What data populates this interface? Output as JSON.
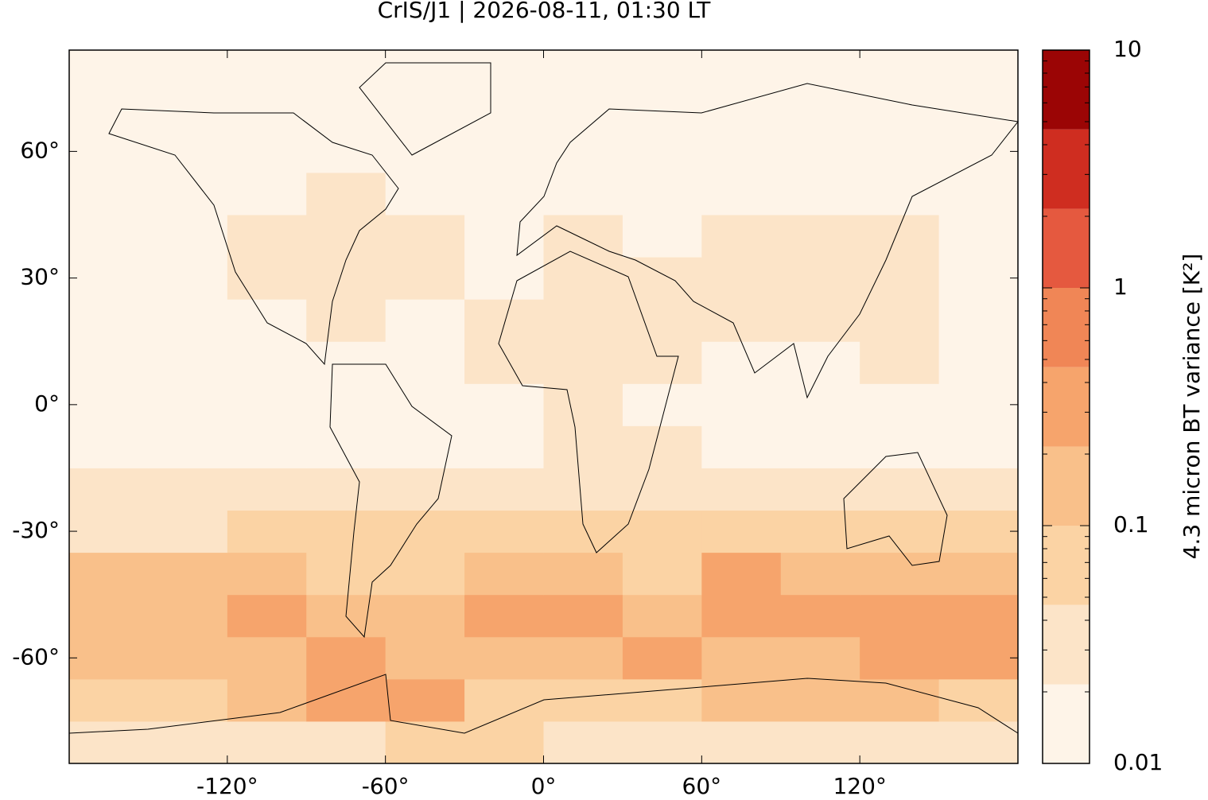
{
  "chart_data": {
    "type": "map",
    "title": "CrIS/J1 | 2026-08-11, 01:30 LT",
    "xlim": [
      -180,
      180
    ],
    "ylim": [
      -85,
      84
    ],
    "xticks": [
      {
        "value": -120,
        "label": "-120°"
      },
      {
        "value": -60,
        "label": "-60°"
      },
      {
        "value": 0,
        "label": "0°"
      },
      {
        "value": 60,
        "label": "60°"
      },
      {
        "value": 120,
        "label": "120°"
      }
    ],
    "yticks": [
      {
        "value": -60,
        "label": "-60°"
      },
      {
        "value": -30,
        "label": "-30°"
      },
      {
        "value": 0,
        "label": "0°"
      },
      {
        "value": 30,
        "label": "30°"
      },
      {
        "value": 60,
        "label": "60°"
      }
    ],
    "field": {
      "lon_edges": [
        -180,
        -150,
        -120,
        -90,
        -60,
        -30,
        0,
        30,
        60,
        90,
        120,
        150,
        180
      ],
      "lat_edges": [
        -85,
        -75,
        -65,
        -55,
        -45,
        -35,
        -25,
        -15,
        -5,
        5,
        15,
        25,
        35,
        45,
        55,
        65,
        75,
        84
      ],
      "values": [
        [
          0.03,
          0.03,
          0.03,
          0.04,
          0.06,
          0.05,
          0.04,
          0.03,
          0.03,
          0.03,
          0.03,
          0.03
        ],
        [
          0.06,
          0.07,
          0.1,
          0.35,
          0.3,
          0.08,
          0.07,
          0.07,
          0.1,
          0.15,
          0.1,
          0.08
        ],
        [
          0.1,
          0.12,
          0.2,
          0.3,
          0.2,
          0.15,
          0.18,
          0.25,
          0.15,
          0.12,
          0.3,
          0.25
        ],
        [
          0.15,
          0.18,
          0.25,
          0.2,
          0.12,
          0.25,
          0.3,
          0.15,
          0.35,
          0.3,
          0.4,
          0.3
        ],
        [
          0.12,
          0.1,
          0.1,
          0.08,
          0.08,
          0.12,
          0.15,
          0.08,
          0.25,
          0.15,
          0.15,
          0.2
        ],
        [
          0.04,
          0.04,
          0.05,
          0.05,
          0.05,
          0.05,
          0.05,
          0.06,
          0.06,
          0.05,
          0.06,
          0.05
        ],
        [
          0.025,
          0.025,
          0.025,
          0.025,
          0.025,
          0.025,
          0.025,
          0.025,
          0.025,
          0.025,
          0.025,
          0.025
        ],
        [
          0.02,
          0.02,
          0.02,
          0.02,
          0.02,
          0.02,
          0.025,
          0.025,
          0.02,
          0.02,
          0.02,
          0.02
        ],
        [
          0.02,
          0.02,
          0.02,
          0.02,
          0.02,
          0.02,
          0.025,
          0.02,
          0.02,
          0.02,
          0.02,
          0.02
        ],
        [
          0.02,
          0.02,
          0.02,
          0.02,
          0.02,
          0.025,
          0.03,
          0.025,
          0.02,
          0.02,
          0.025,
          0.02
        ],
        [
          0.02,
          0.02,
          0.02,
          0.025,
          0.02,
          0.025,
          0.03,
          0.025,
          0.03,
          0.025,
          0.025,
          0.02
        ],
        [
          0.02,
          0.02,
          0.025,
          0.03,
          0.025,
          0.02,
          0.025,
          0.025,
          0.025,
          0.03,
          0.025,
          0.02
        ],
        [
          0.02,
          0.02,
          0.025,
          0.03,
          0.025,
          0.02,
          0.025,
          0.02,
          0.025,
          0.025,
          0.025,
          0.02
        ],
        [
          0.015,
          0.015,
          0.02,
          0.025,
          0.02,
          0.015,
          0.02,
          0.02,
          0.02,
          0.02,
          0.02,
          0.015
        ],
        [
          0.015,
          0.015,
          0.015,
          0.015,
          0.015,
          0.015,
          0.015,
          0.015,
          0.015,
          0.015,
          0.015,
          0.015
        ],
        [
          0.015,
          0.015,
          0.015,
          0.015,
          0.015,
          0.015,
          0.015,
          0.015,
          0.015,
          0.015,
          0.015,
          0.015
        ],
        [
          0.015,
          0.015,
          0.015,
          0.015,
          0.015,
          0.015,
          0.015,
          0.015,
          0.015,
          0.015,
          0.015,
          0.015
        ]
      ]
    },
    "colorbar": {
      "label": "4.3 micron BT variance [K²]",
      "log": true,
      "lim": [
        0.01,
        10
      ],
      "levels": [
        0.01,
        0.0215,
        0.0464,
        0.1,
        0.215,
        0.464,
        1,
        2.15,
        4.64,
        10
      ],
      "colors": [
        "#fef4e8",
        "#fce4c8",
        "#fbd3a4",
        "#f9c08a",
        "#f6a46c",
        "#f08656",
        "#e5593f",
        "#cf2d20",
        "#9b0505"
      ],
      "ticks": [
        0.01,
        0.1,
        1,
        10
      ]
    }
  }
}
